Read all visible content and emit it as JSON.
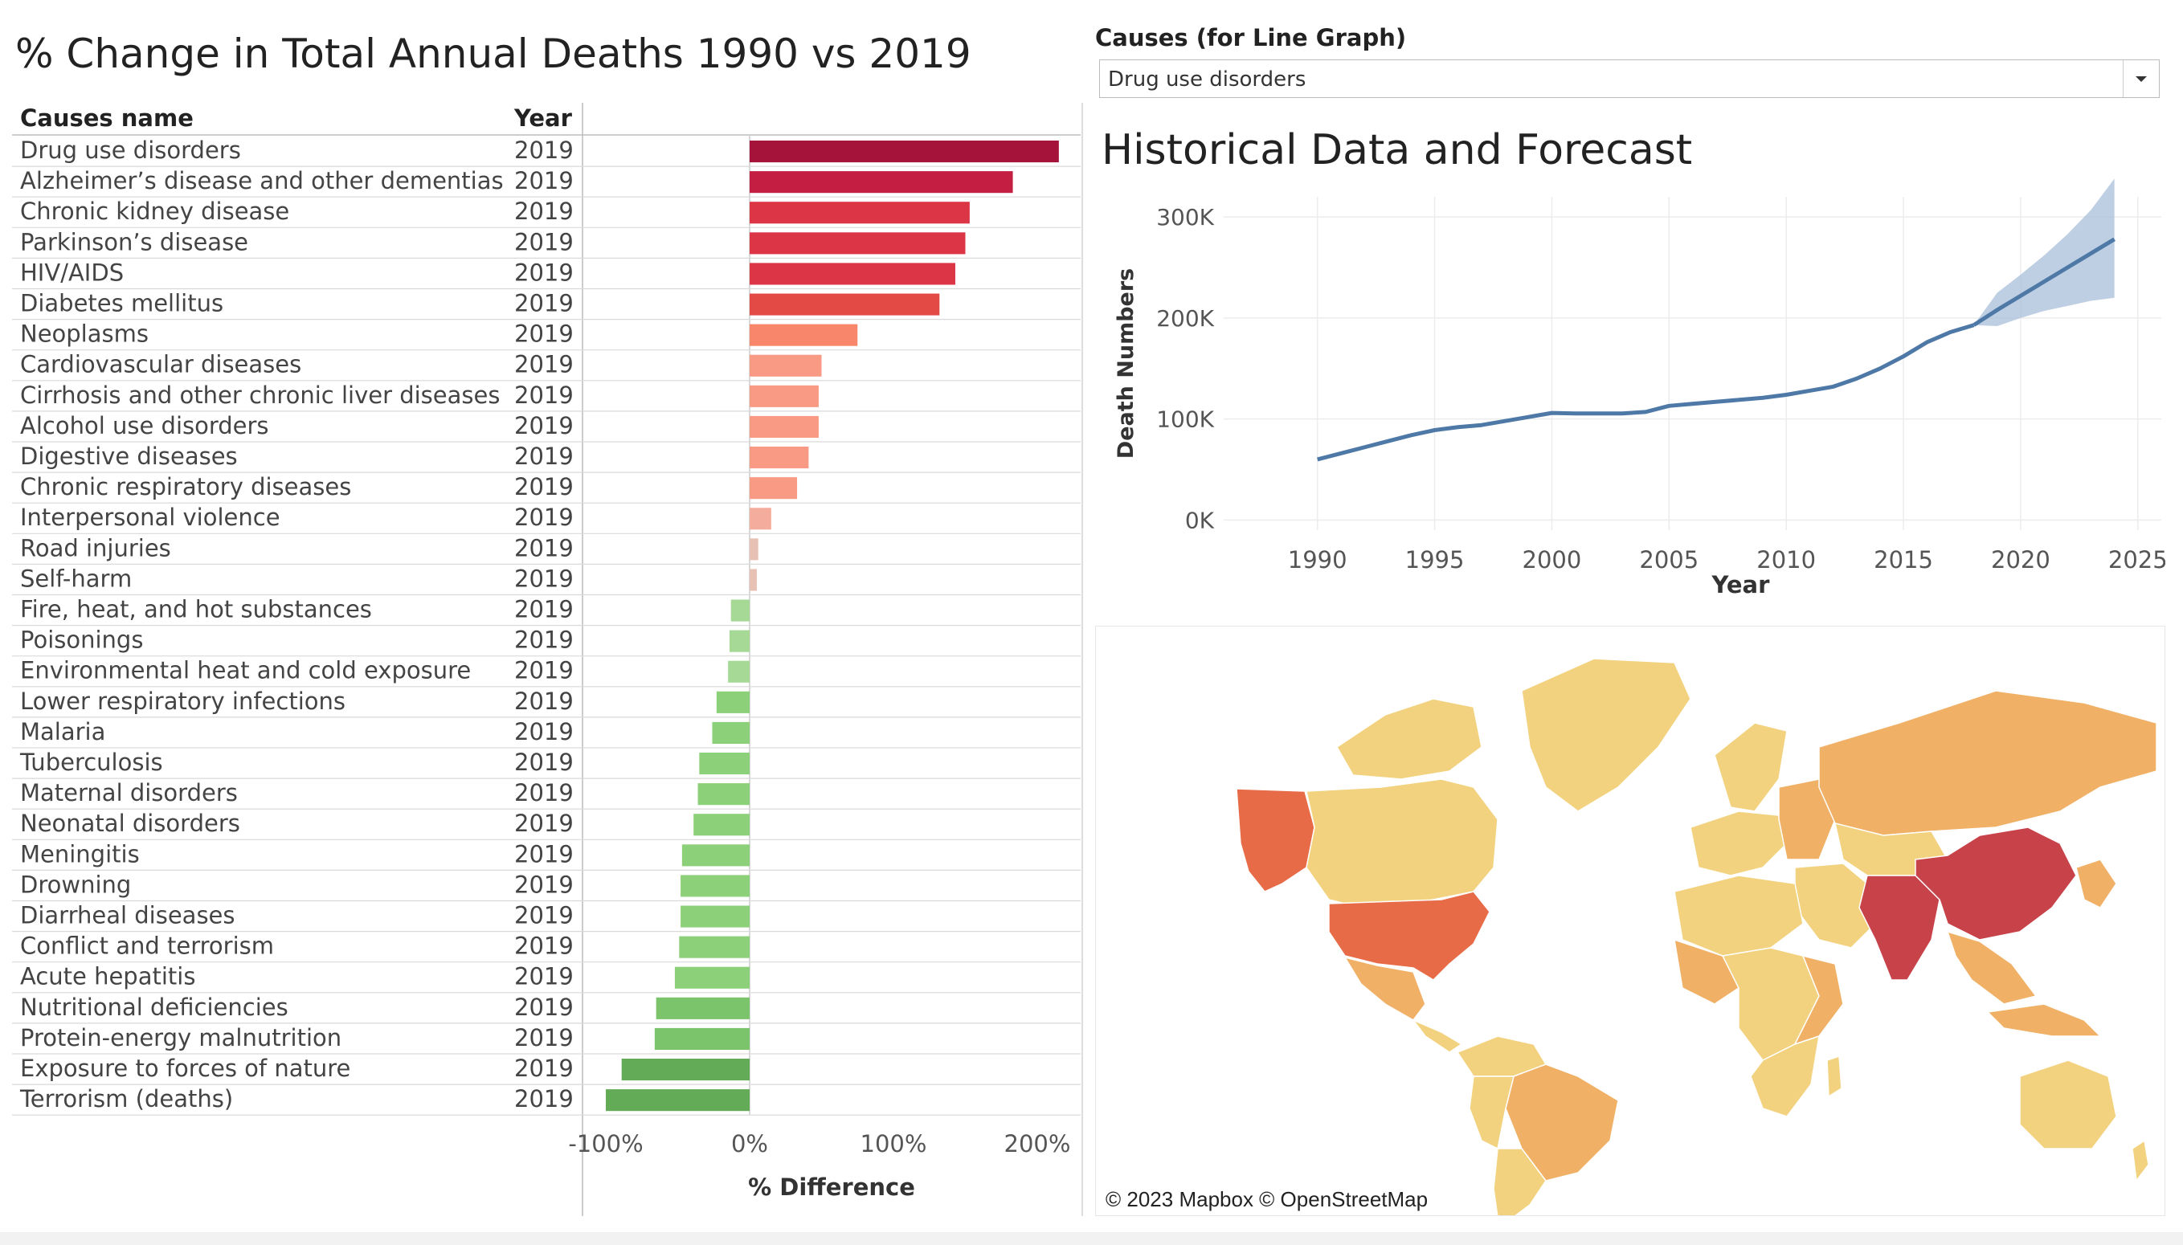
{
  "left_panel": {
    "title": "% Change in Total Annual Deaths 1990 vs 2019",
    "col_cause": "Causes name",
    "col_year": "Year",
    "xlabel": "% Difference"
  },
  "controls": {
    "causes_label": "Causes (for Line Graph)",
    "causes_selected": "Drug use disorders"
  },
  "right_panel": {
    "title": "Historical Data and Forecast",
    "xlabel": "Year",
    "ylabel": "Death Numbers"
  },
  "map": {
    "credit": "© 2023 Mapbox © OpenStreetMap"
  },
  "colors": {
    "line": "#4e79a7",
    "band": "#a9bfd9",
    "map_high": "#c8424a",
    "map_midhigh": "#e76b47",
    "map_mid": "#f0b066",
    "map_low": "#f2d27e"
  },
  "chart_data": [
    {
      "type": "bar",
      "orientation": "horizontal",
      "categories": [
        "Drug use disorders",
        "Alzheimer’s disease and other dementias",
        "Chronic kidney disease",
        "Parkinson’s disease",
        "HIV/AIDS",
        "Diabetes mellitus",
        "Neoplasms",
        "Cardiovascular diseases",
        "Cirrhosis and other chronic liver diseases",
        "Alcohol use disorders",
        "Digestive diseases",
        "Chronic respiratory diseases",
        "Interpersonal violence",
        "Road injuries",
        "Self-harm",
        "Fire, heat, and hot substances",
        "Poisonings",
        "Environmental heat and cold exposure",
        "Lower respiratory infections",
        "Malaria",
        "Tuberculosis",
        "Maternal disorders",
        "Neonatal disorders",
        "Meningitis",
        "Drowning",
        "Diarrheal diseases",
        "Conflict and terrorism",
        "Acute hepatitis",
        "Nutritional deficiencies",
        "Protein-energy malnutrition",
        "Exposure to forces of nature",
        "Terrorism (deaths)"
      ],
      "year": [
        "2019",
        "2019",
        "2019",
        "2019",
        "2019",
        "2019",
        "2019",
        "2019",
        "2019",
        "2019",
        "2019",
        "2019",
        "2019",
        "2019",
        "2019",
        "2019",
        "2019",
        "2019",
        "2019",
        "2019",
        "2019",
        "2019",
        "2019",
        "2019",
        "2019",
        "2019",
        "2019",
        "2019",
        "2019",
        "2019",
        "2019",
        "2019"
      ],
      "values": [
        215,
        183,
        153,
        150,
        143,
        132,
        75,
        50,
        48,
        48,
        41,
        33,
        15,
        6,
        5,
        -13,
        -14,
        -15,
        -23,
        -26,
        -35,
        -36,
        -39,
        -47,
        -48,
        -48,
        -49,
        -52,
        -65,
        -66,
        -89,
        -100
      ],
      "xlabel": "% Difference",
      "xlim": [
        -115,
        225
      ],
      "xticks": [
        "-100%",
        "0%",
        "100%",
        "200%"
      ],
      "xtick_values": [
        -100,
        0,
        100,
        200
      ]
    },
    {
      "type": "line",
      "x": [
        1990,
        1991,
        1992,
        1993,
        1994,
        1995,
        1996,
        1997,
        1998,
        1999,
        2000,
        2001,
        2002,
        2003,
        2004,
        2005,
        2006,
        2007,
        2008,
        2009,
        2010,
        2011,
        2012,
        2013,
        2014,
        2015,
        2016,
        2017,
        2018
      ],
      "values": [
        60000,
        66000,
        72000,
        78000,
        84000,
        89000,
        92000,
        94000,
        98000,
        102000,
        106000,
        105500,
        105500,
        105500,
        107000,
        113000,
        115000,
        117000,
        119000,
        121000,
        124000,
        128000,
        132000,
        140000,
        150000,
        162000,
        176000,
        186000,
        193000
      ],
      "forecast": {
        "x": [
          2018,
          2019,
          2020,
          2021,
          2022,
          2023,
          2024
        ],
        "values": [
          193000,
          208000,
          222000,
          236000,
          250000,
          264000,
          278000
        ],
        "upper": [
          193000,
          225000,
          243000,
          262000,
          283000,
          307000,
          338000
        ],
        "lower": [
          193000,
          192000,
          200000,
          207000,
          212000,
          217000,
          220000
        ]
      },
      "xlabel": "Year",
      "ylabel": "Death Numbers",
      "xlim": [
        1986,
        2026
      ],
      "ylim": [
        0,
        330000
      ],
      "xticks": [
        "1990",
        "1995",
        "2000",
        "2005",
        "2010",
        "2015",
        "2020",
        "2025"
      ],
      "yticks": [
        "0K",
        "100K",
        "200K",
        "300K"
      ],
      "grid": true
    }
  ]
}
